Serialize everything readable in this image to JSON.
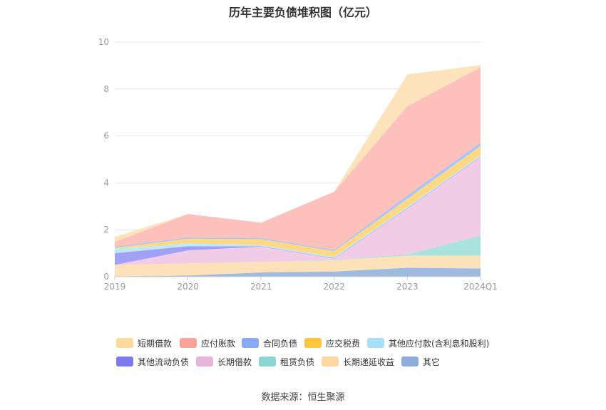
{
  "title": "历年主要负债堆积图（亿元）",
  "source": "数据来源：恒生聚源",
  "chart_data": {
    "type": "area",
    "stacked": true,
    "title": "历年主要负债堆积图（亿元）",
    "xlabel": "",
    "ylabel": "",
    "categories": [
      "2019",
      "2020",
      "2021",
      "2022",
      "2023",
      "2024Q1"
    ],
    "ylim": [
      0,
      10
    ],
    "yticks": [
      0,
      2,
      4,
      6,
      8,
      10
    ],
    "grid": true,
    "legend_position": "bottom",
    "series": [
      {
        "name": "其它",
        "color": "#9bb5dd",
        "values": [
          0.02,
          0.05,
          0.18,
          0.22,
          0.38,
          0.35
        ]
      },
      {
        "name": "长期递延收益",
        "color": "#fde0b5",
        "values": [
          0.48,
          0.52,
          0.45,
          0.48,
          0.52,
          0.55
        ]
      },
      {
        "name": "租赁负债",
        "color": "#a5e0dc",
        "values": [
          0.0,
          0.0,
          0.0,
          0.02,
          0.05,
          0.85
        ]
      },
      {
        "name": "长期借款",
        "color": "#efc9e5",
        "values": [
          0.0,
          0.55,
          0.65,
          0.05,
          1.95,
          3.35
        ]
      },
      {
        "name": "其他流动负债",
        "color": "#9c9cf5",
        "values": [
          0.5,
          0.18,
          0.02,
          0.02,
          0.02,
          0.02
        ]
      },
      {
        "name": "其他应付款(含利息和股利)",
        "color": "#bde7fb",
        "values": [
          0.18,
          0.12,
          0.05,
          0.05,
          0.05,
          0.05
        ]
      },
      {
        "name": "应交税费",
        "color": "#fdd77e",
        "values": [
          0.05,
          0.2,
          0.25,
          0.25,
          0.35,
          0.4
        ]
      },
      {
        "name": "合同负债",
        "color": "#a7c2f7",
        "values": [
          0.05,
          0.05,
          0.05,
          0.05,
          0.15,
          0.15
        ]
      },
      {
        "name": "应付账款",
        "color": "#fdbdb7",
        "values": [
          0.2,
          1.0,
          0.65,
          2.48,
          3.8,
          3.2
        ]
      },
      {
        "name": "短期借款",
        "color": "#fde2b8",
        "values": [
          0.22,
          0.0,
          0.0,
          0.0,
          1.35,
          0.1
        ]
      }
    ]
  },
  "legend": [
    {
      "label": "短期借款",
      "color": "#fdd99b"
    },
    {
      "label": "应付账款",
      "color": "#f9a49b"
    },
    {
      "label": "合同负债",
      "color": "#8aa9f5"
    },
    {
      "label": "应交税费",
      "color": "#fcc63f"
    },
    {
      "label": "其他应付款(含利息和股利)",
      "color": "#a6dff9"
    },
    {
      "label": "其他流动负债",
      "color": "#7b7bef"
    },
    {
      "label": "长期借款",
      "color": "#e8b5da"
    },
    {
      "label": "租赁负债",
      "color": "#89d7d2"
    },
    {
      "label": "长期递延收益",
      "color": "#fdd8a3"
    },
    {
      "label": "其它",
      "color": "#8fabd9"
    }
  ]
}
